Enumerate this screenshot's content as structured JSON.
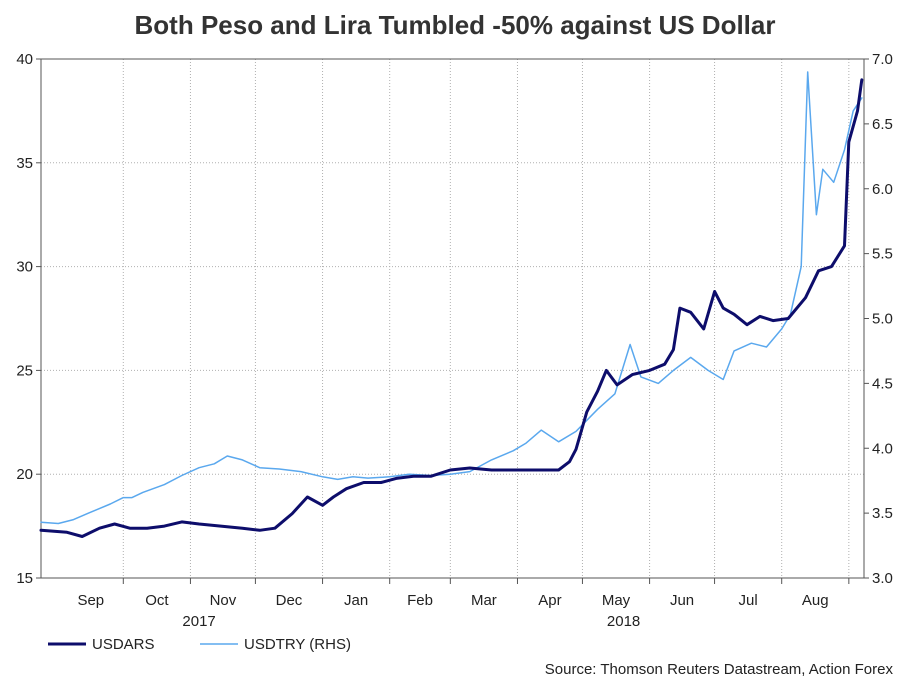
{
  "chart_data": {
    "type": "line",
    "title": "Both Peso and Lira Tumbled -50% against US Dollar",
    "source": "Source: Thomson Reuters Datastream, Action Forex",
    "x_months": [
      "Sep",
      "Oct",
      "Nov",
      "Dec",
      "Jan",
      "Feb",
      "Mar",
      "Apr",
      "May",
      "Jun",
      "Jul",
      "Aug"
    ],
    "x_years": [
      "2017",
      "2018"
    ],
    "y_left": {
      "ticks": [
        "15",
        "20",
        "25",
        "30",
        "35",
        "40"
      ],
      "range": [
        15,
        40
      ]
    },
    "y_right": {
      "ticks": [
        "3.0",
        "3.5",
        "4.0",
        "4.5",
        "5.0",
        "5.5",
        "6.0",
        "6.5",
        "7.0"
      ],
      "range": [
        3.0,
        7.0
      ]
    },
    "grid": true,
    "legend_position": "bottom-left",
    "colors": {
      "USDARS": "#0d0d6b",
      "USDTRY": "#5aa8ee"
    },
    "series": [
      {
        "name": "USDARS",
        "axis": "left",
        "points": [
          [
            "2017-08-24",
            17.3
          ],
          [
            "2017-09-05",
            17.2
          ],
          [
            "2017-09-12",
            17.0
          ],
          [
            "2017-09-20",
            17.4
          ],
          [
            "2017-09-27",
            17.6
          ],
          [
            "2017-10-04",
            17.4
          ],
          [
            "2017-10-12",
            17.4
          ],
          [
            "2017-10-20",
            17.5
          ],
          [
            "2017-10-28",
            17.7
          ],
          [
            "2017-11-05",
            17.6
          ],
          [
            "2017-11-15",
            17.5
          ],
          [
            "2017-11-25",
            17.4
          ],
          [
            "2017-12-03",
            17.3
          ],
          [
            "2017-12-10",
            17.4
          ],
          [
            "2017-12-18",
            18.1
          ],
          [
            "2017-12-25",
            18.9
          ],
          [
            "2018-01-01",
            18.5
          ],
          [
            "2018-01-06",
            18.9
          ],
          [
            "2018-01-12",
            19.3
          ],
          [
            "2018-01-20",
            19.6
          ],
          [
            "2018-01-28",
            19.6
          ],
          [
            "2018-02-04",
            19.8
          ],
          [
            "2018-02-12",
            19.9
          ],
          [
            "2018-02-20",
            19.9
          ],
          [
            "2018-03-01",
            20.2
          ],
          [
            "2018-03-10",
            20.3
          ],
          [
            "2018-03-20",
            20.2
          ],
          [
            "2018-03-30",
            20.2
          ],
          [
            "2018-04-10",
            20.2
          ],
          [
            "2018-04-20",
            20.2
          ],
          [
            "2018-04-25",
            20.6
          ],
          [
            "2018-04-28",
            21.2
          ],
          [
            "2018-05-03",
            23.0
          ],
          [
            "2018-05-08",
            24.0
          ],
          [
            "2018-05-12",
            25.0
          ],
          [
            "2018-05-17",
            24.3
          ],
          [
            "2018-05-24",
            24.8
          ],
          [
            "2018-06-01",
            25.0
          ],
          [
            "2018-06-08",
            25.3
          ],
          [
            "2018-06-12",
            26.0
          ],
          [
            "2018-06-15",
            28.0
          ],
          [
            "2018-06-20",
            27.8
          ],
          [
            "2018-06-26",
            27.0
          ],
          [
            "2018-07-01",
            28.8
          ],
          [
            "2018-07-05",
            28.0
          ],
          [
            "2018-07-10",
            27.7
          ],
          [
            "2018-07-16",
            27.2
          ],
          [
            "2018-07-22",
            27.6
          ],
          [
            "2018-07-28",
            27.4
          ],
          [
            "2018-08-04",
            27.5
          ],
          [
            "2018-08-12",
            28.5
          ],
          [
            "2018-08-18",
            29.8
          ],
          [
            "2018-08-24",
            30.0
          ],
          [
            "2018-08-30",
            31.0
          ],
          [
            "2018-09-01",
            36.0
          ],
          [
            "2018-09-05",
            37.5
          ],
          [
            "2018-09-07",
            39.0
          ]
        ]
      },
      {
        "name": "USDTRY (RHS)",
        "axis": "right",
        "points": [
          [
            "2017-08-24",
            3.43
          ],
          [
            "2017-09-01",
            3.42
          ],
          [
            "2017-09-08",
            3.45
          ],
          [
            "2017-09-15",
            3.5
          ],
          [
            "2017-09-25",
            3.57
          ],
          [
            "2017-10-01",
            3.62
          ],
          [
            "2017-10-05",
            3.62
          ],
          [
            "2017-10-10",
            3.66
          ],
          [
            "2017-10-20",
            3.72
          ],
          [
            "2017-10-28",
            3.79
          ],
          [
            "2017-11-05",
            3.85
          ],
          [
            "2017-11-12",
            3.88
          ],
          [
            "2017-11-18",
            3.94
          ],
          [
            "2017-11-25",
            3.91
          ],
          [
            "2017-12-03",
            3.85
          ],
          [
            "2017-12-12",
            3.84
          ],
          [
            "2017-12-22",
            3.82
          ],
          [
            "2018-01-01",
            3.78
          ],
          [
            "2018-01-08",
            3.76
          ],
          [
            "2018-01-15",
            3.78
          ],
          [
            "2018-01-22",
            3.77
          ],
          [
            "2018-02-01",
            3.78
          ],
          [
            "2018-02-10",
            3.8
          ],
          [
            "2018-02-20",
            3.79
          ],
          [
            "2018-03-01",
            3.8
          ],
          [
            "2018-03-10",
            3.82
          ],
          [
            "2018-03-20",
            3.91
          ],
          [
            "2018-03-30",
            3.98
          ],
          [
            "2018-04-05",
            4.04
          ],
          [
            "2018-04-12",
            4.14
          ],
          [
            "2018-04-20",
            4.05
          ],
          [
            "2018-04-28",
            4.13
          ],
          [
            "2018-05-08",
            4.3
          ],
          [
            "2018-05-16",
            4.42
          ],
          [
            "2018-05-23",
            4.8
          ],
          [
            "2018-05-28",
            4.55
          ],
          [
            "2018-06-05",
            4.5
          ],
          [
            "2018-06-12",
            4.6
          ],
          [
            "2018-06-20",
            4.7
          ],
          [
            "2018-06-28",
            4.6
          ],
          [
            "2018-07-05",
            4.53
          ],
          [
            "2018-07-10",
            4.75
          ],
          [
            "2018-07-18",
            4.81
          ],
          [
            "2018-07-25",
            4.78
          ],
          [
            "2018-08-01",
            4.92
          ],
          [
            "2018-08-05",
            5.03
          ],
          [
            "2018-08-10",
            5.4
          ],
          [
            "2018-08-13",
            6.9
          ],
          [
            "2018-08-17",
            5.8
          ],
          [
            "2018-08-20",
            6.15
          ],
          [
            "2018-08-25",
            6.05
          ],
          [
            "2018-08-30",
            6.3
          ],
          [
            "2018-09-03",
            6.6
          ],
          [
            "2018-09-07",
            6.7
          ]
        ]
      }
    ]
  }
}
